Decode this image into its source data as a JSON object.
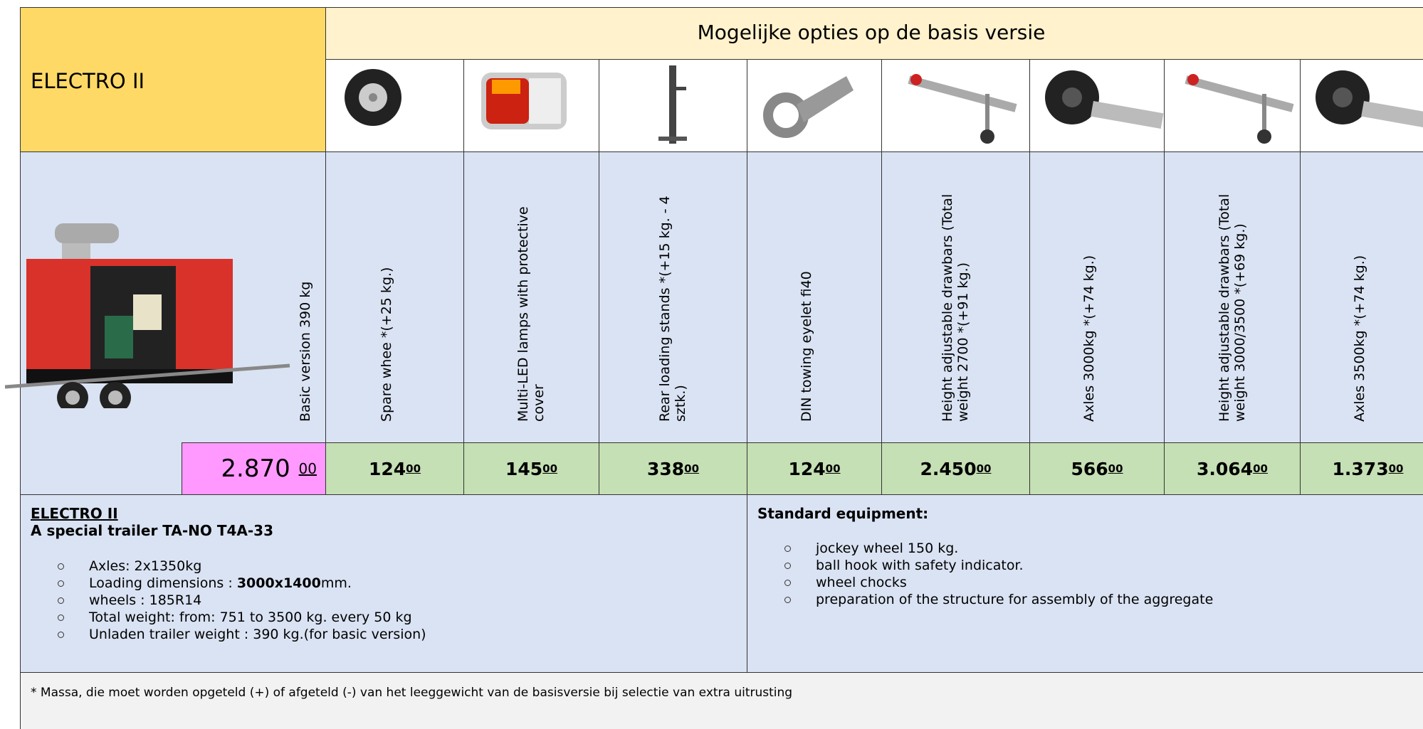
{
  "header": {
    "product": "ELECTRO II",
    "options_title": "Mogelijke opties op de basis versie"
  },
  "basic": {
    "label": "Basic version  390 kg",
    "price": "2.870",
    "cents": "00"
  },
  "options": [
    {
      "label": "Spare whee *(+25 kg.)",
      "price": "124",
      "cents": "00"
    },
    {
      "label": "Multi-LED lamps with protective cover",
      "price": "145",
      "cents": "00"
    },
    {
      "label": "Rear loading stands *(+15 kg. - 4 sztk.)",
      "price": "338",
      "cents": "00"
    },
    {
      "label": "DIN towing eyelet fi40",
      "price": "124",
      "cents": "00"
    },
    {
      "label": "Height adjustable drawbars (Total weight 2700 *(+91 kg.)",
      "price": "2.450",
      "cents": "00"
    },
    {
      "label": "Axles  3000kg *(+74 kg.)",
      "price": "566",
      "cents": "00"
    },
    {
      "label": "Height adjustable drawbars (Total weight  3000/3500 *(+69 kg.)",
      "price": "3.064",
      "cents": "00"
    },
    {
      "label": "Axles 3500kg *(+74 kg.)",
      "price": "1.373",
      "cents": "00"
    }
  ],
  "description": {
    "title": "ELECTRO II",
    "subtitle": "A special trailer TA-NO  T4A-33",
    "items": [
      {
        "text": "Axles: 2x1350kg"
      },
      {
        "text": "Loading dimensions : ",
        "bold": "3000x1400",
        "after": "mm."
      },
      {
        "text": "wheels : 185R14"
      },
      {
        "text": "Total weight: from: 751 to 3500 kg. every 50 kg"
      },
      {
        "text": "Unladen trailer weight : 390 kg.(for basic version)"
      }
    ]
  },
  "standard": {
    "title": "Standard equipment:",
    "items": [
      "jockey wheel 150 kg.",
      "ball hook with safety indicator.",
      "wheel chocks",
      "preparation of the structure for assembly of the aggregate"
    ]
  },
  "footnote": "* Massa, die moet worden opgeteld (+) of afgeteld (-) van het leeggewicht van de basisversie bij selectie van extra uitrusting"
}
